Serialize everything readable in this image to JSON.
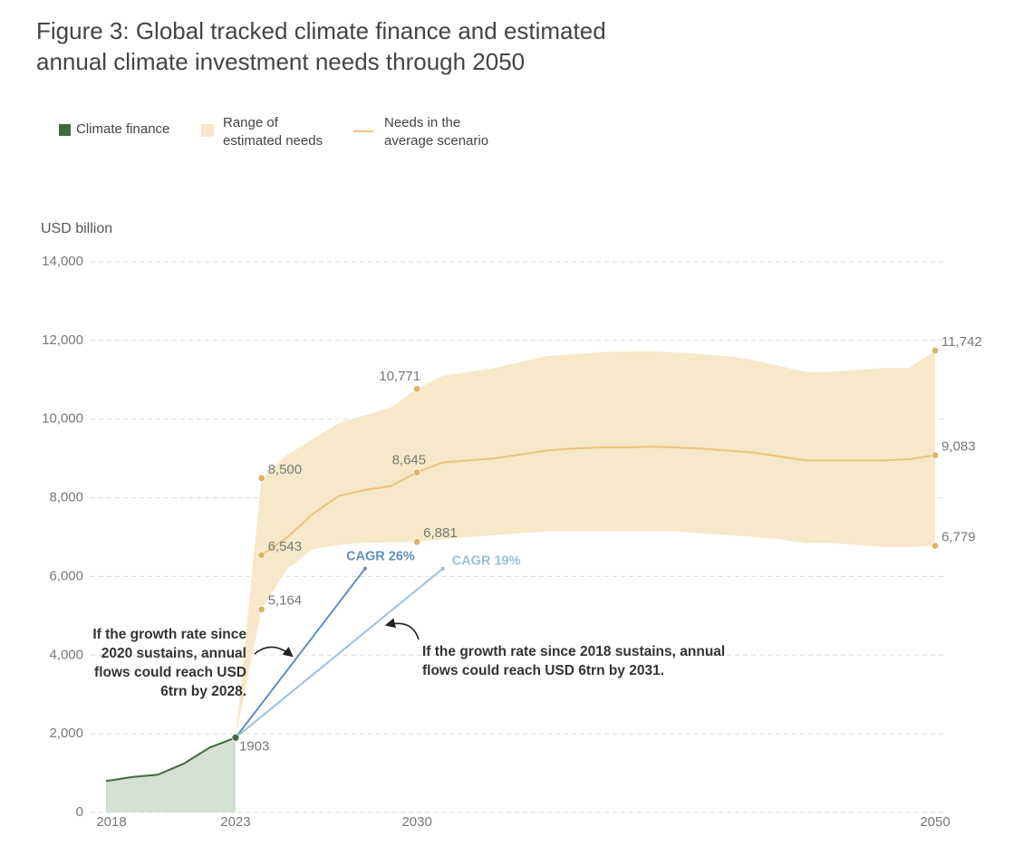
{
  "chart_data": {
    "type": "line",
    "title": "Figure 3: Global tracked climate finance and estimated annual climate investment needs through 2050",
    "y_label": "USD billion",
    "xlim": [
      2018,
      2050
    ],
    "xticks": [
      2018,
      2023,
      2030,
      2050
    ],
    "ylim": [
      0,
      14000
    ],
    "yticks": [
      0,
      {
        "value": 2000,
        "label": "2,000"
      },
      {
        "value": 4000,
        "label": "4,000"
      },
      {
        "value": 6000,
        "label": "6,000"
      },
      {
        "value": 8000,
        "label": "8,000"
      },
      {
        "value": 10000,
        "label": "10,000"
      },
      {
        "value": 12000,
        "label": "12,000"
      },
      {
        "value": 14000,
        "label": "14,000"
      }
    ],
    "grid": true,
    "series": [
      {
        "name": "Climate finance",
        "kind": "area",
        "color": "#3e6b3c",
        "fill": "#d4e0d4",
        "x": [
          2018,
          2019,
          2020,
          2021,
          2022,
          2023
        ],
        "values": [
          800,
          900,
          960,
          1240,
          1650,
          1903
        ],
        "value_labels": [
          null,
          null,
          null,
          null,
          null,
          "1903"
        ]
      },
      {
        "name": "Range of estimated needs",
        "kind": "band",
        "color": "#f6e8c9",
        "x": [
          2023,
          2024,
          2025,
          2026,
          2027,
          2028,
          2029,
          2030,
          2031,
          2032,
          2033,
          2034,
          2035,
          2036,
          2037,
          2038,
          2039,
          2040,
          2041,
          2042,
          2043,
          2044,
          2045,
          2046,
          2047,
          2048,
          2049,
          2050
        ],
        "upper": [
          1903,
          8500,
          9100,
          9500,
          9900,
          10100,
          10300,
          10771,
          11100,
          11200,
          11300,
          11450,
          11600,
          11650,
          11700,
          11720,
          11720,
          11700,
          11650,
          11600,
          11500,
          11350,
          11200,
          11200,
          11250,
          11300,
          11300,
          11742
        ],
        "upper_labels": [
          null,
          "8,500",
          null,
          null,
          null,
          null,
          null,
          "10,771",
          null,
          null,
          null,
          null,
          null,
          null,
          null,
          null,
          null,
          null,
          null,
          null,
          null,
          null,
          null,
          null,
          null,
          null,
          null,
          "11,742"
        ],
        "lower": [
          1903,
          5164,
          6200,
          6700,
          6800,
          6850,
          6870,
          6881,
          6950,
          7000,
          7050,
          7100,
          7150,
          7150,
          7150,
          7150,
          7150,
          7150,
          7100,
          7050,
          7000,
          6950,
          6850,
          6850,
          6800,
          6750,
          6750,
          6779
        ],
        "lower_labels": [
          null,
          "5,164",
          null,
          null,
          null,
          null,
          null,
          "6,881",
          null,
          null,
          null,
          null,
          null,
          null,
          null,
          null,
          null,
          null,
          null,
          null,
          null,
          null,
          null,
          null,
          null,
          null,
          null,
          "6,779"
        ]
      },
      {
        "name": "Needs in the average scenario",
        "kind": "line",
        "color": "#e9c47d",
        "x": [
          2024,
          2025,
          2026,
          2027,
          2028,
          2029,
          2030,
          2031,
          2032,
          2033,
          2034,
          2035,
          2036,
          2037,
          2038,
          2039,
          2040,
          2041,
          2042,
          2043,
          2044,
          2045,
          2046,
          2047,
          2048,
          2049,
          2050
        ],
        "values": [
          6543,
          7000,
          7600,
          8050,
          8200,
          8300,
          8645,
          8900,
          8950,
          9000,
          9100,
          9200,
          9250,
          9280,
          9280,
          9300,
          9280,
          9250,
          9200,
          9150,
          9050,
          8950,
          8950,
          8950,
          8950,
          8980,
          9083
        ],
        "value_labels": [
          "6,543",
          null,
          null,
          null,
          null,
          null,
          "8,645",
          null,
          null,
          null,
          null,
          null,
          null,
          null,
          null,
          null,
          null,
          null,
          null,
          null,
          null,
          null,
          null,
          null,
          null,
          null,
          "9,083"
        ]
      }
    ],
    "dot_color": "#dcb56a",
    "projections": [
      {
        "name": "CAGR 26%",
        "color": "#5f8fc0",
        "x": [
          2023,
          2028
        ],
        "values": [
          1903,
          6200
        ]
      },
      {
        "name": "CAGR 19%",
        "color": "#9cc0dd",
        "x": [
          2023,
          2031
        ],
        "values": [
          1903,
          6200
        ]
      }
    ],
    "annotations": [
      "If the growth rate since 2020 sustains, annual flows could reach USD 6trn by 2028.",
      "If the growth rate since 2018 sustains, annual flows could reach USD 6trn by 2031."
    ]
  }
}
